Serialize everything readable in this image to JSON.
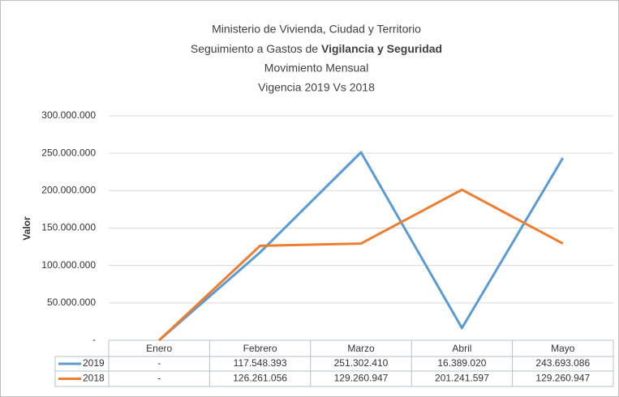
{
  "chart_data": {
    "type": "line",
    "title": [
      "Ministerio de Vivienda, Ciudad y Territorio",
      "Seguimiento a Gastos de",
      "Vigilancia y Seguridad",
      "Movimiento Mensual",
      "Vigencia 2019 Vs 2018"
    ],
    "y_label": "Valor",
    "categories": [
      "Enero",
      "Febrero",
      "Marzo",
      "Abril",
      "Mayo"
    ],
    "series": [
      {
        "name": "2019",
        "color": "#5b9bd5",
        "values": [
          0,
          117548393,
          251302410,
          16389020,
          243693086
        ],
        "value_labels": [
          "-",
          "117.548.393",
          "251.302.410",
          "16.389.020",
          "243.693.086"
        ]
      },
      {
        "name": "2018",
        "color": "#ed7d31",
        "values": [
          0,
          126261056,
          129260947,
          201241597,
          129260947
        ],
        "value_labels": [
          "-",
          "126.261.056",
          "129.260.947",
          "201.241.597",
          "129.260.947"
        ]
      }
    ],
    "ylim": [
      0,
      300000000
    ],
    "yticks": [
      {
        "value": 0,
        "label": "-"
      },
      {
        "value": 50000000,
        "label": "50.000.000"
      },
      {
        "value": 100000000,
        "label": "100.000.000"
      },
      {
        "value": 150000000,
        "label": "150.000.000"
      },
      {
        "value": 200000000,
        "label": "200.000.000"
      },
      {
        "value": 250000000,
        "label": "250.000.000"
      },
      {
        "value": 300000000,
        "label": "300.000.000"
      }
    ],
    "grid": true
  }
}
